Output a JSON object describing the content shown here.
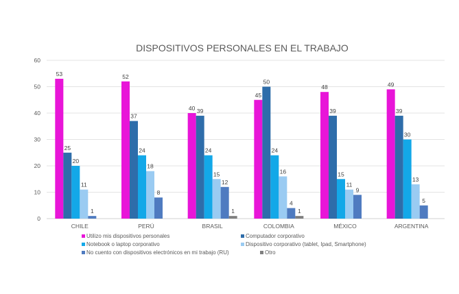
{
  "chart_data": {
    "type": "bar",
    "title": "DISPOSITIVOS PERSONALES EN EL TRABAJO",
    "xlabel": "",
    "ylabel": "",
    "ylim": [
      0,
      60
    ],
    "yticks": [
      0,
      10,
      20,
      30,
      40,
      50,
      60
    ],
    "grid": true,
    "legend_position": "bottom",
    "categories": [
      "CHILE",
      "PERÚ",
      "BRASIL",
      "COLOMBIA",
      "MÉXICO",
      "ARGENTINA"
    ],
    "series": [
      {
        "name": "Utilizo mis dispositivos personales",
        "color": "#E815D8",
        "values": [
          53,
          52,
          40,
          45,
          48,
          49
        ]
      },
      {
        "name": "Computador corporativo",
        "color": "#2E6DAA",
        "values": [
          25,
          37,
          39,
          50,
          39,
          39
        ]
      },
      {
        "name": "Notebook o laptop corporativo",
        "color": "#13A8E8",
        "values": [
          20,
          24,
          24,
          24,
          15,
          30
        ]
      },
      {
        "name": "Dispositivo corporativo (tablet, Ipad, Smartphone)",
        "color": "#9ACBF2",
        "values": [
          11,
          18,
          15,
          16,
          11,
          13
        ]
      },
      {
        "name": "No cuento con dispositivos electrónicos en mi trabajo (RU)",
        "color": "#4F7BC0",
        "values": [
          1,
          8,
          12,
          4,
          9,
          5
        ]
      },
      {
        "name": "Otro",
        "color": "#7F7F7F",
        "values": [
          null,
          null,
          1,
          1,
          null,
          null
        ]
      }
    ]
  }
}
